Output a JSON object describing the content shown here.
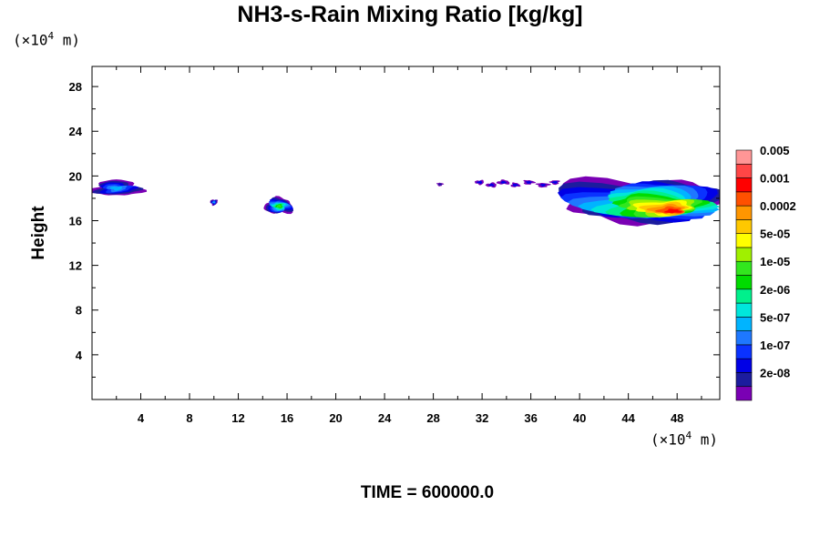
{
  "chart_data": {
    "type": "heatmap",
    "title": "NH3-s-Rain Mixing Ratio [kg/kg]",
    "ylabel": "Height",
    "xlabel": "",
    "x_unit": "(×10⁴ m)",
    "y_unit": "(×10⁴ m)",
    "unit_prefix": "(×10",
    "unit_exp": "4",
    "unit_suffix": " m)",
    "xlim": [
      0,
      51.5
    ],
    "ylim": [
      0,
      29.8
    ],
    "xticks": [
      4,
      8,
      12,
      16,
      20,
      24,
      28,
      32,
      36,
      40,
      44,
      48
    ],
    "yticks": [
      4,
      8,
      12,
      16,
      20,
      24,
      28
    ],
    "footer": "TIME = 600000.0",
    "colorbar": {
      "colors": [
        "#7a00b4",
        "#1c1c9e",
        "#0000e6",
        "#0a32ff",
        "#1e78ff",
        "#00b4ff",
        "#00e6dc",
        "#00f08c",
        "#00dc00",
        "#32e61e",
        "#a0f000",
        "#ffff00",
        "#ffc800",
        "#ff9600",
        "#ff5000",
        "#ff0000",
        "#ff4646",
        "#ff9696"
      ],
      "labels": [
        "2e-08",
        "1e-07",
        "5e-07",
        "2e-06",
        "1e-05",
        "5e-05",
        "0.0002",
        "0.001",
        "0.005"
      ],
      "label_every": 2
    },
    "regions": [
      {
        "name": "left-cloud",
        "x": [
          0,
          4
        ],
        "y": [
          18.2,
          19.6
        ],
        "peak_level": 5
      },
      {
        "name": "small-patch-x10",
        "x": [
          9.7,
          10.3
        ],
        "y": [
          17.4,
          17.9
        ],
        "peak_level": 5
      },
      {
        "name": "patch-x15",
        "x": [
          14.2,
          16.5
        ],
        "y": [
          16.6,
          18.0
        ],
        "peak_level": 9
      },
      {
        "name": "speck-x28",
        "x": [
          28.3,
          28.8
        ],
        "y": [
          19.1,
          19.4
        ],
        "peak_level": 1
      },
      {
        "name": "scattered-x32-38",
        "x": [
          31.8,
          38.3
        ],
        "y": [
          19.0,
          19.7
        ],
        "peak_level": 3
      },
      {
        "name": "right-cloud",
        "x": [
          38,
          51.5
        ],
        "y": [
          16.1,
          19.8
        ],
        "peak_level": 15
      }
    ]
  }
}
